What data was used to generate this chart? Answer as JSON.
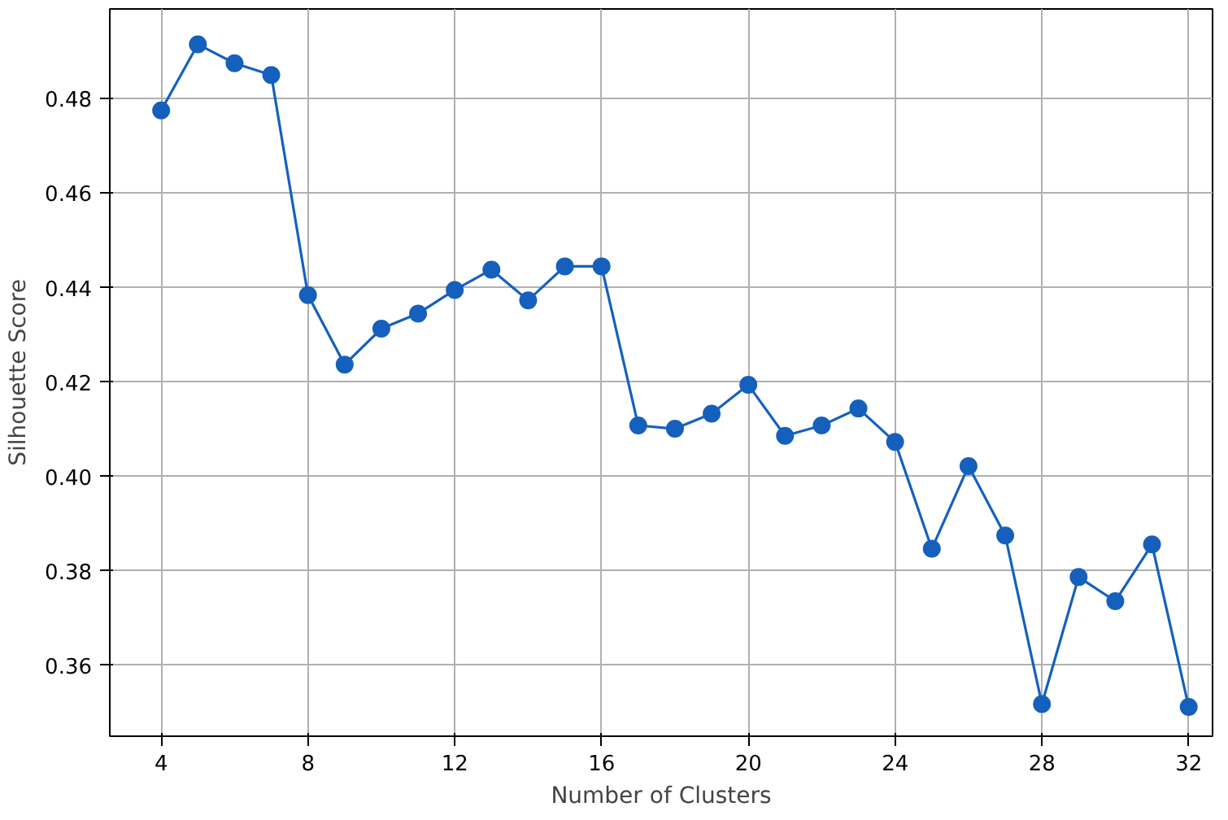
{
  "chart_data": {
    "type": "line",
    "xlabel": "Number of Clusters",
    "ylabel": "Silhouette Score",
    "x": [
      4,
      5,
      6,
      7,
      8,
      9,
      10,
      11,
      12,
      13,
      14,
      15,
      16,
      17,
      18,
      19,
      20,
      21,
      22,
      23,
      24,
      25,
      26,
      27,
      28,
      29,
      30,
      31,
      32
    ],
    "series": [
      {
        "color": "#1560bd",
        "values": [
          0.4775,
          0.4915,
          0.4875,
          0.485,
          0.4384,
          0.4237,
          0.4313,
          0.4345,
          0.4395,
          0.4438,
          0.4373,
          0.4445,
          0.4445,
          0.4108,
          0.4101,
          0.4133,
          0.4194,
          0.4086,
          0.4108,
          0.4144,
          0.4073,
          0.3847,
          0.4022,
          0.3875,
          0.3518,
          0.3787,
          0.3736,
          0.3856,
          0.3512
        ]
      }
    ],
    "xlim": [
      2.6,
      32.65
    ],
    "ylim": [
      0.345,
      0.499
    ],
    "xticks": [
      4,
      8,
      12,
      16,
      20,
      24,
      28,
      32
    ],
    "yticks": [
      {
        "value": 0.36,
        "label": "0.36"
      },
      {
        "value": 0.38,
        "label": "0.38"
      },
      {
        "value": 0.4,
        "label": "0.40"
      },
      {
        "value": 0.42,
        "label": "0.42"
      },
      {
        "value": 0.44,
        "label": "0.44"
      },
      {
        "value": 0.46,
        "label": "0.46"
      },
      {
        "value": 0.48,
        "label": "0.48"
      }
    ],
    "grid": true,
    "marker": "circle",
    "line_style": "solid"
  }
}
